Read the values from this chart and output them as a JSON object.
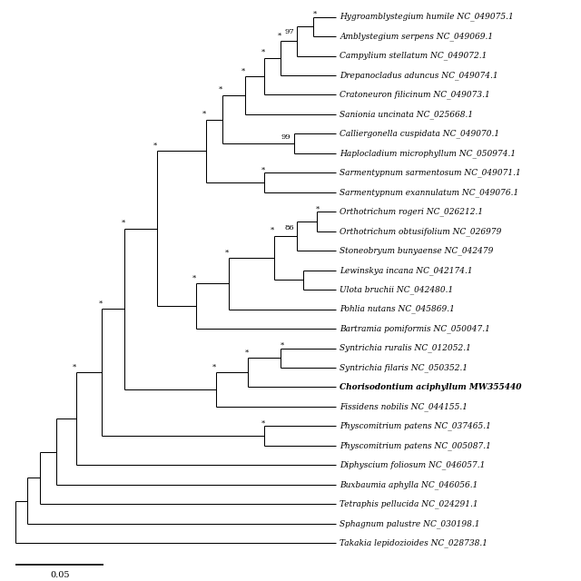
{
  "taxa": [
    {
      "name": "Hygroamblystegium humile NC_049075.1",
      "bold": false,
      "y": 1
    },
    {
      "name": "Amblystegium serpens NC_049069.1",
      "bold": false,
      "y": 2
    },
    {
      "name": "Campylium stellatum NC_049072.1",
      "bold": false,
      "y": 3
    },
    {
      "name": "Drepanocladus aduncus NC_049074.1",
      "bold": false,
      "y": 4
    },
    {
      "name": "Cratoneuron filicinum NC_049073.1",
      "bold": false,
      "y": 5
    },
    {
      "name": "Sanionia uncinata NC_025668.1",
      "bold": false,
      "y": 6
    },
    {
      "name": "Calliergonella cuspidata NC_049070.1",
      "bold": false,
      "y": 7
    },
    {
      "name": "Haplocladium microphyllum NC_050974.1",
      "bold": false,
      "y": 8
    },
    {
      "name": "Sarmentypnum sarmentosum NC_049071.1",
      "bold": false,
      "y": 9
    },
    {
      "name": "Sarmentypnum exannulatum NC_049076.1",
      "bold": false,
      "y": 10
    },
    {
      "name": "Orthotrichum rogeri NC_026212.1",
      "bold": false,
      "y": 11
    },
    {
      "name": "Orthotrichum obtusifolium NC_026979",
      "bold": false,
      "y": 12
    },
    {
      "name": "Stoneobryum bunyaense NC_042479",
      "bold": false,
      "y": 13
    },
    {
      "name": "Lewinskya incana NC_042174.1",
      "bold": false,
      "y": 14
    },
    {
      "name": "Ulota bruchii NC_042480.1",
      "bold": false,
      "y": 15
    },
    {
      "name": "Pohlia nutans NC_045869.1",
      "bold": false,
      "y": 16
    },
    {
      "name": "Bartramia pomiformis NC_050047.1",
      "bold": false,
      "y": 17
    },
    {
      "name": "Syntrichia ruralis NC_012052.1",
      "bold": false,
      "y": 18
    },
    {
      "name": "Syntrichia filaris NC_050352.1",
      "bold": false,
      "y": 19
    },
    {
      "name": "Chorisodontium aciphyllum MW355440",
      "bold": true,
      "y": 20
    },
    {
      "name": "Fissidens nobilis NC_044155.1",
      "bold": false,
      "y": 21
    },
    {
      "name": "Physcomitrium patens NC_037465.1",
      "bold": false,
      "y": 22
    },
    {
      "name": "Physcomitrium patens NC_005087.1",
      "bold": false,
      "y": 23
    },
    {
      "name": "Diphyscium foliosum NC_046057.1",
      "bold": false,
      "y": 24
    },
    {
      "name": "Buxbaumia aphylla NC_046056.1",
      "bold": false,
      "y": 25
    },
    {
      "name": "Tetraphis pellucida NC_024291.1",
      "bold": false,
      "y": 26
    },
    {
      "name": "Sphagnum palustre NC_030198.1",
      "bold": false,
      "y": 27
    },
    {
      "name": "Takakia lepidozioides NC_028738.1",
      "bold": false,
      "y": 28
    }
  ],
  "bg_color": "#ffffff",
  "line_color": "#000000",
  "label_color": "#000000",
  "scale_bar_value": "0.05",
  "font_size": 6.5,
  "lw": 0.75
}
